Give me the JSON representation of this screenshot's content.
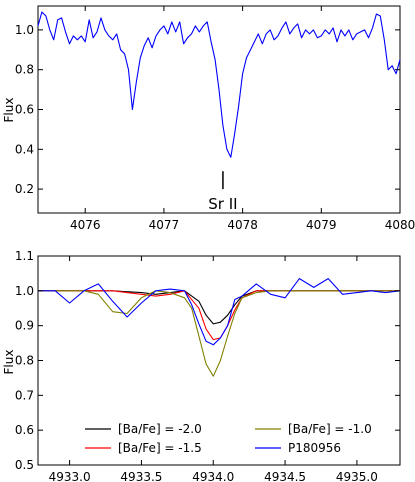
{
  "chart_data": [
    {
      "type": "line",
      "panel": "top",
      "xlabel": "",
      "ylabel": "Flux",
      "xlim": [
        4075.4,
        4080.0
      ],
      "ylim": [
        0.08,
        1.12
      ],
      "xticks": [
        4076,
        4077,
        4078,
        4079,
        4080
      ],
      "yticks": [
        0.2,
        0.4,
        0.6,
        0.8,
        1.0
      ],
      "grid": false,
      "annotation": {
        "text": "Sr II",
        "x": 4077.75,
        "y_top": 0.29,
        "y_bottom": 0.2
      },
      "series": [
        {
          "name": "",
          "color": "#0000ff",
          "x": [
            4075.4,
            4075.45,
            4075.5,
            4075.55,
            4075.6,
            4075.65,
            4075.7,
            4075.75,
            4075.8,
            4075.85,
            4075.9,
            4075.95,
            4076.0,
            4076.05,
            4076.1,
            4076.15,
            4076.2,
            4076.25,
            4076.3,
            4076.35,
            4076.4,
            4076.45,
            4076.5,
            4076.55,
            4076.6,
            4076.65,
            4076.7,
            4076.75,
            4076.8,
            4076.85,
            4076.9,
            4076.95,
            4077.0,
            4077.05,
            4077.1,
            4077.15,
            4077.2,
            4077.25,
            4077.3,
            4077.35,
            4077.4,
            4077.45,
            4077.5,
            4077.55,
            4077.6,
            4077.65,
            4077.7,
            4077.75,
            4077.8,
            4077.85,
            4077.9,
            4077.95,
            4078.0,
            4078.05,
            4078.1,
            4078.15,
            4078.2,
            4078.25,
            4078.3,
            4078.35,
            4078.4,
            4078.45,
            4078.5,
            4078.55,
            4078.6,
            4078.65,
            4078.7,
            4078.75,
            4078.8,
            4078.85,
            4078.9,
            4078.95,
            4079.0,
            4079.05,
            4079.1,
            4079.15,
            4079.2,
            4079.25,
            4079.3,
            4079.35,
            4079.4,
            4079.45,
            4079.5,
            4079.55,
            4079.6,
            4079.65,
            4079.7,
            4079.75,
            4079.8,
            4079.85,
            4079.9,
            4079.95,
            4080.0
          ],
          "y": [
            1.02,
            1.09,
            1.07,
            1.0,
            0.95,
            1.05,
            1.06,
            0.99,
            0.93,
            0.97,
            0.95,
            0.97,
            0.94,
            1.05,
            0.96,
            0.99,
            1.06,
            1.0,
            0.97,
            0.95,
            0.98,
            0.9,
            0.88,
            0.8,
            0.6,
            0.74,
            0.86,
            0.92,
            0.96,
            0.91,
            0.97,
            1.0,
            1.02,
            0.98,
            1.04,
            0.99,
            1.04,
            0.93,
            0.96,
            0.98,
            1.02,
            0.99,
            1.02,
            1.04,
            0.94,
            0.85,
            0.7,
            0.52,
            0.4,
            0.36,
            0.48,
            0.62,
            0.78,
            0.86,
            0.9,
            0.94,
            0.98,
            0.93,
            0.98,
            1.0,
            0.95,
            0.97,
            1.01,
            1.04,
            0.98,
            1.01,
            1.03,
            0.96,
            1.0,
            0.98,
            1.0,
            0.96,
            0.97,
            1.0,
            0.98,
            1.01,
            0.94,
            1.0,
            0.97,
            1.0,
            0.95,
            0.98,
            0.99,
            1.0,
            0.96,
            1.01,
            1.08,
            1.07,
            0.95,
            0.8,
            0.82,
            0.78,
            0.85
          ]
        }
      ]
    },
    {
      "type": "line",
      "panel": "bottom",
      "xlabel": "",
      "ylabel": "Flux",
      "xlim": [
        4932.78,
        4935.3
      ],
      "ylim": [
        0.5,
        1.1
      ],
      "xticks": [
        4933.0,
        4933.5,
        4934.0,
        4934.5,
        4935.0
      ],
      "xtick_labels": [
        "4933.0",
        "4933.5",
        "4934.0",
        "4934.5",
        "4935.0"
      ],
      "yticks": [
        0.5,
        0.6,
        0.7,
        0.8,
        0.9,
        1.0,
        1.1
      ],
      "ytick_labels": [
        "0.5",
        "0.6",
        "0.7",
        "0.8",
        "0.9",
        "1.0",
        "1.1"
      ],
      "grid": false,
      "legend_position": "lower",
      "series": [
        {
          "name": "[Ba/Fe] = -2.0",
          "color": "#000000",
          "x": [
            4932.78,
            4933.3,
            4933.5,
            4933.6,
            4933.7,
            4933.8,
            4933.9,
            4933.95,
            4934.0,
            4934.05,
            4934.1,
            4934.15,
            4934.2,
            4934.3,
            4934.5,
            4935.3
          ],
          "y": [
            1.0,
            1.0,
            0.995,
            0.99,
            0.995,
            1.0,
            0.97,
            0.93,
            0.905,
            0.91,
            0.93,
            0.96,
            0.985,
            1.0,
            1.0,
            1.0
          ]
        },
        {
          "name": "[Ba/Fe] = -1.5",
          "color": "#ff0000",
          "x": [
            4932.78,
            4933.3,
            4933.5,
            4933.6,
            4933.7,
            4933.8,
            4933.9,
            4933.95,
            4934.0,
            4934.05,
            4934.1,
            4934.15,
            4934.2,
            4934.3,
            4934.5,
            4935.3
          ],
          "y": [
            1.0,
            1.0,
            0.99,
            0.985,
            0.99,
            1.0,
            0.95,
            0.89,
            0.86,
            0.865,
            0.9,
            0.945,
            0.98,
            1.0,
            1.0,
            1.0
          ]
        },
        {
          "name": "[Ba/Fe] = -1.0",
          "color": "#808000",
          "x": [
            4932.78,
            4933.1,
            4933.2,
            4933.3,
            4933.4,
            4933.5,
            4933.6,
            4933.7,
            4933.8,
            4933.85,
            4933.9,
            4933.95,
            4934.0,
            4934.05,
            4934.1,
            4934.15,
            4934.2,
            4934.3,
            4934.4,
            4934.5,
            4935.3
          ],
          "y": [
            1.0,
            1.0,
            0.99,
            0.94,
            0.935,
            0.98,
            1.0,
            0.995,
            0.98,
            0.95,
            0.87,
            0.79,
            0.755,
            0.8,
            0.87,
            0.935,
            0.98,
            0.995,
            1.0,
            1.0,
            1.0
          ]
        },
        {
          "name": "P180956",
          "color": "#0000ff",
          "x": [
            4932.78,
            4932.9,
            4933.0,
            4933.1,
            4933.2,
            4933.3,
            4933.4,
            4933.5,
            4933.6,
            4933.7,
            4933.8,
            4933.85,
            4933.9,
            4933.95,
            4934.0,
            4934.05,
            4934.1,
            4934.15,
            4934.2,
            4934.3,
            4934.4,
            4934.5,
            4934.6,
            4934.7,
            4934.8,
            4934.9,
            4935.0,
            4935.1,
            4935.2,
            4935.3
          ],
          "y": [
            1.0,
            1.0,
            0.965,
            1.0,
            1.02,
            0.97,
            0.925,
            0.965,
            1.0,
            1.005,
            1.0,
            0.96,
            0.905,
            0.855,
            0.845,
            0.865,
            0.9,
            0.975,
            0.985,
            1.02,
            0.99,
            0.98,
            1.035,
            1.01,
            1.035,
            0.99,
            0.995,
            1.0,
            0.995,
            1.0
          ]
        }
      ]
    }
  ]
}
